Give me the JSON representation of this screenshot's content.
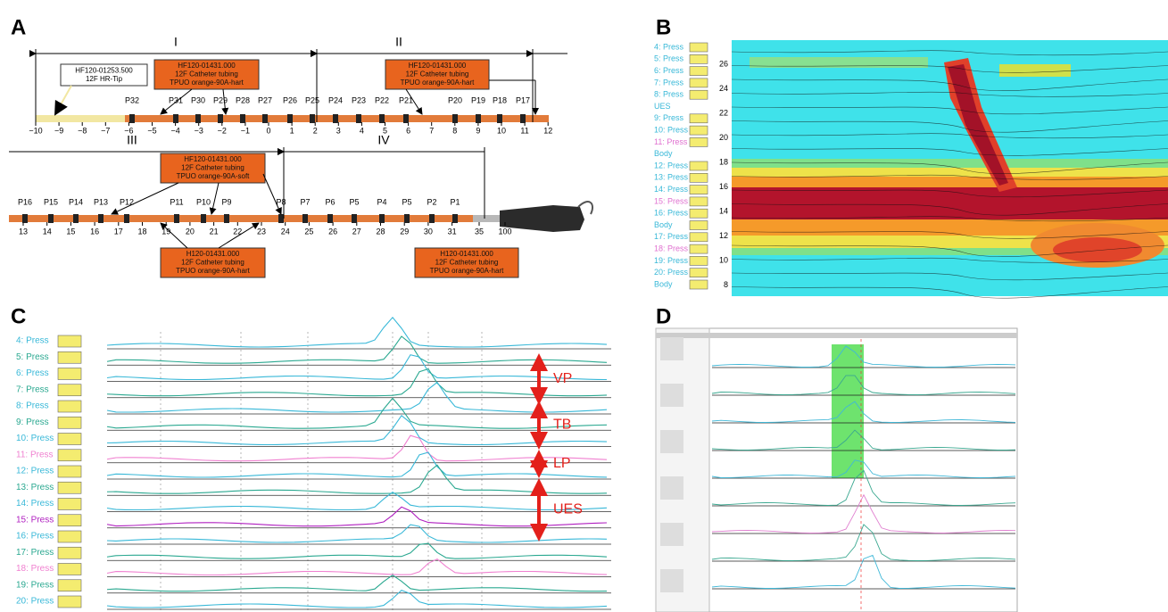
{
  "panels": {
    "a": {
      "label": "A",
      "sections": [
        "I",
        "II",
        "III",
        "IV"
      ],
      "boxes": [
        [
          "HF120-01253.500",
          "12F HR-Tip"
        ],
        [
          "HF120-01431.000",
          "12F Catheter tubing",
          "TPUO orange-90A-hart"
        ],
        [
          "HF120-01431.000",
          "12F Catheter tubing",
          "TPUO orange-90A-hart"
        ],
        [
          "HF120-01431.000",
          "12F Catheter tubing",
          "TPUO orange-90A-soft"
        ],
        [
          "H120-01431.000",
          "12F Catheter tubing",
          "TPUO orange-90A-hart"
        ],
        [
          "H120-01431.000",
          "12F Catheter tubing",
          "TPUO orange-90A-hart"
        ]
      ],
      "sensors_top": [
        "P32",
        "P31",
        "P30",
        "P29",
        "P28",
        "P27",
        "P26",
        "P25",
        "P24",
        "P23",
        "P22",
        "P21",
        "P20",
        "P19",
        "P18",
        "P17"
      ],
      "scale_top": [
        "−10",
        "−9",
        "−8",
        "−7",
        "−6",
        "−5",
        "−4",
        "−3",
        "−2",
        "−1",
        "0",
        "1",
        "2",
        "3",
        "4",
        "5",
        "6",
        "7",
        "8",
        "9",
        "10",
        "11",
        "12"
      ],
      "sensors_bottom": [
        "P16",
        "P15",
        "P14",
        "P13",
        "P12",
        "P11",
        "P10",
        "P9",
        "P8",
        "P7",
        "P6",
        "P5",
        "P4",
        "P5",
        "P2",
        "P1"
      ],
      "scale_bottom": [
        "13",
        "14",
        "15",
        "16",
        "17",
        "18",
        "19",
        "20",
        "21",
        "22",
        "23",
        "24",
        "25",
        "26",
        "27",
        "28",
        "29",
        "30",
        "31",
        "35",
        "100"
      ]
    },
    "b": {
      "label": "B",
      "channels": [
        "4: Press",
        "5: Press",
        "6: Press",
        "7: Press",
        "8: Press",
        "UES",
        "9: Press",
        "10: Press",
        "11: Press",
        "Body",
        "12: Press",
        "13: Press",
        "14: Press",
        "15: Press",
        "16: Press",
        "Body",
        "17: Press",
        "18: Press",
        "19: Press",
        "20: Press",
        "Body"
      ],
      "yaxis": [
        "26",
        "24",
        "22",
        "20",
        "18",
        "16",
        "14",
        "12",
        "10",
        "8"
      ]
    },
    "c": {
      "label": "C",
      "channels": [
        "4: Press",
        "5: Press",
        "6: Press",
        "7: Press",
        "8: Press",
        "9: Press",
        "10: Press",
        "11: Press",
        "12: Press",
        "13: Press",
        "14: Press",
        "15: Press",
        "16: Press",
        "17: Press",
        "18: Press",
        "19: Press",
        "20: Press"
      ],
      "regions": [
        "VP",
        "TB",
        "LP",
        "UES"
      ]
    },
    "d": {
      "label": "D"
    }
  }
}
